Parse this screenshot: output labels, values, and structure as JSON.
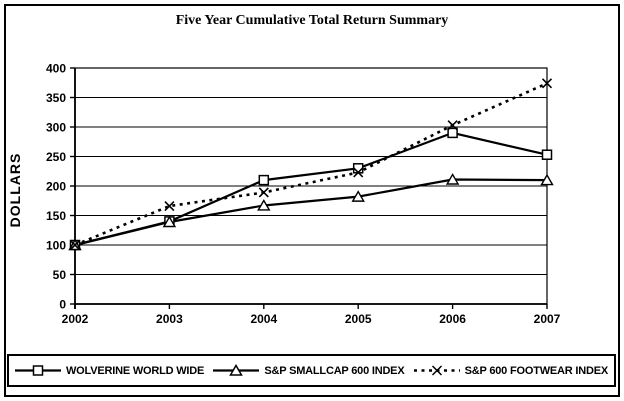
{
  "title": "Five Year Cumulative Total Return Summary",
  "colors": {
    "foreground": "#000000",
    "background": "#ffffff",
    "marker_fill": "#ffffff"
  },
  "chart_data": {
    "type": "line",
    "title": "Five Year Cumulative Total Return Summary",
    "xlabel": "",
    "ylabel": "DOLLARS",
    "categories": [
      "2002",
      "2003",
      "2004",
      "2005",
      "2006",
      "2007"
    ],
    "ylim": [
      0,
      400
    ],
    "yticks": [
      0,
      50,
      100,
      150,
      200,
      250,
      300,
      350,
      400
    ],
    "grid": true,
    "legend_position": "bottom",
    "series": [
      {
        "name": "WOLVERINE WORLD WIDE",
        "values": [
          100,
          140,
          210,
          230,
          290,
          253
        ],
        "line_style": "solid",
        "marker": "square"
      },
      {
        "name": "S&P SMALLCAP 600 INDEX",
        "values": [
          100,
          139,
          167,
          182,
          211,
          210
        ],
        "line_style": "solid",
        "marker": "triangle"
      },
      {
        "name": "S&P 600 FOOTWEAR INDEX",
        "values": [
          100,
          166,
          189,
          223,
          303,
          374
        ],
        "line_style": "dashed",
        "marker": "x"
      }
    ]
  }
}
